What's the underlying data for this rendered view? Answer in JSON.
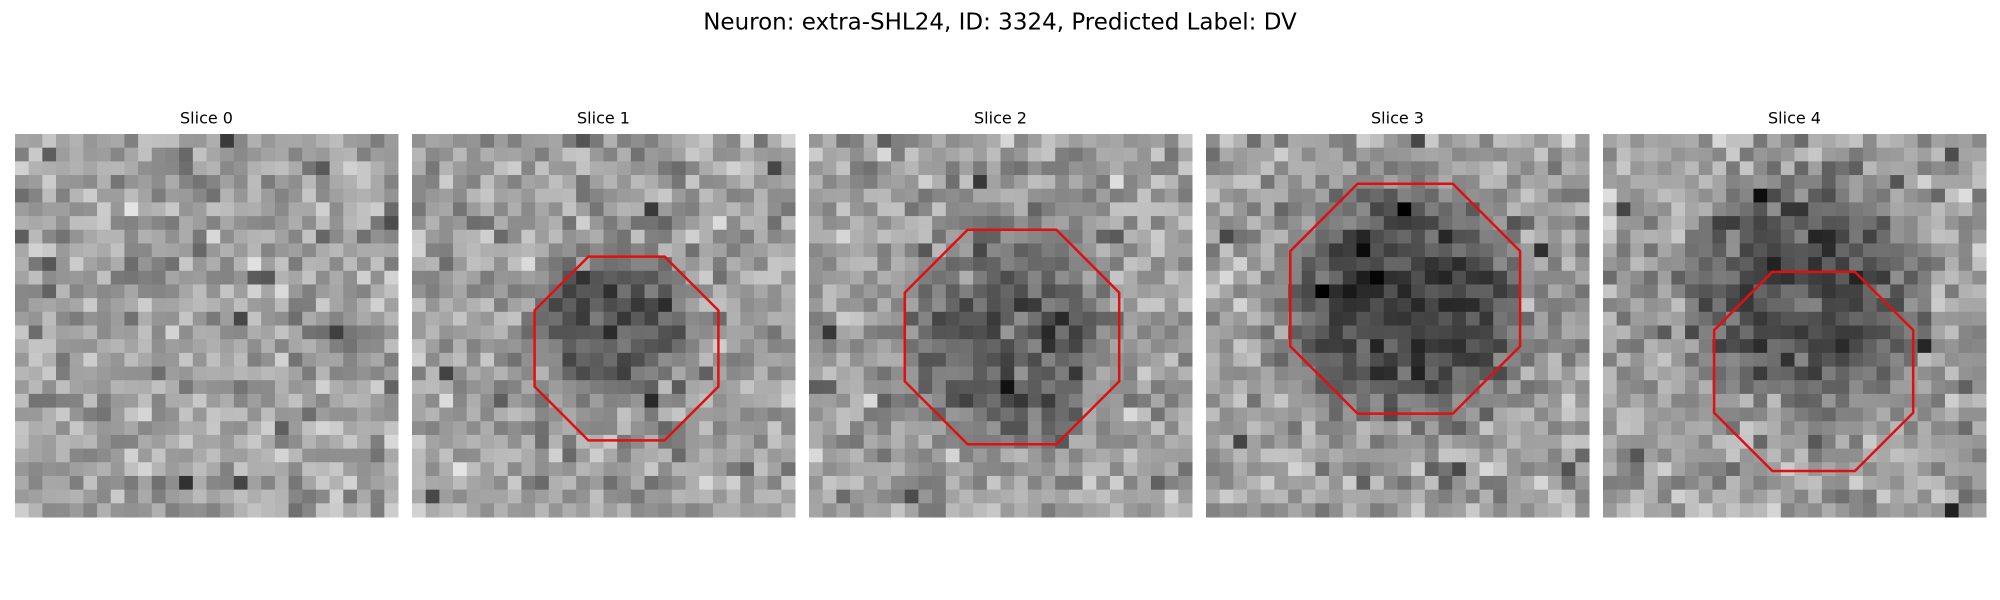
{
  "title": "Neuron: extra-SHL24, ID: 3324, Predicted Label: DV",
  "panels": [
    {
      "title": "Slice 0"
    },
    {
      "title": "Slice 1"
    },
    {
      "title": "Slice 2"
    },
    {
      "title": "Slice 3"
    },
    {
      "title": "Slice 4"
    }
  ]
}
